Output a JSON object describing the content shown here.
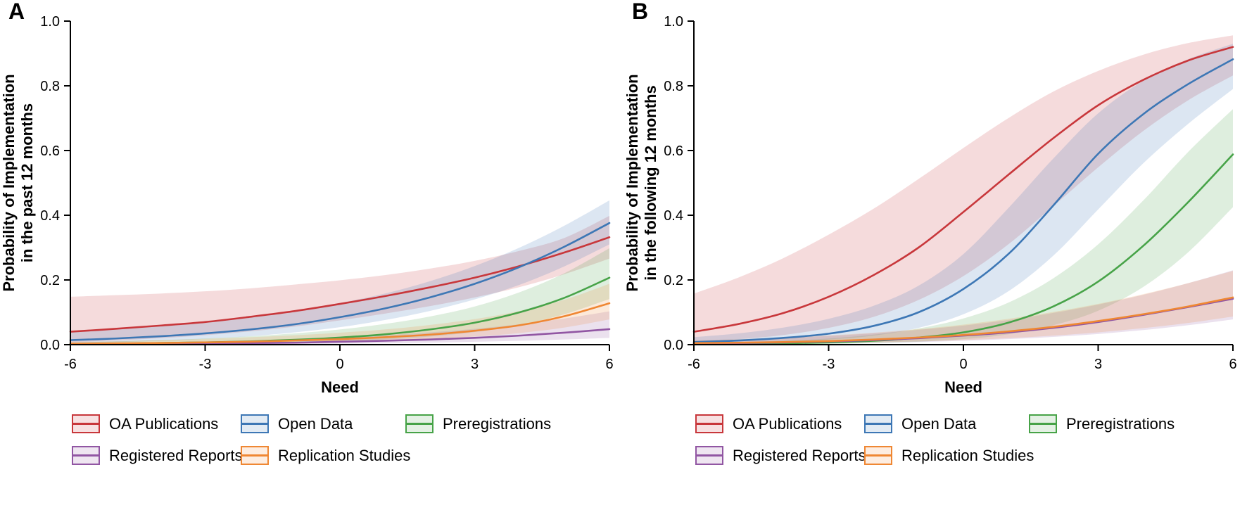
{
  "chart_data": [
    {
      "type": "line",
      "panel_label": "A",
      "xlabel": "Need",
      "ylabel_lines": [
        "Probability of Implementation",
        "in the past 12 months"
      ],
      "xlim": [
        -6,
        6
      ],
      "ylim": [
        0,
        1
      ],
      "xticks": [
        -6,
        -3,
        0,
        3,
        6
      ],
      "yticks": [
        0,
        0.2,
        0.4,
        0.6,
        0.8,
        1
      ],
      "grid": false,
      "legend_position": "bottom",
      "x": [
        -6,
        -5,
        -4,
        -3,
        -2,
        -1,
        0,
        1,
        2,
        3,
        4,
        5,
        6
      ],
      "series": [
        {
          "name": "OA Publications",
          "color": "#C8373B",
          "values": [
            0.04,
            0.049,
            0.059,
            0.07,
            0.086,
            0.104,
            0.126,
            0.15,
            0.177,
            0.207,
            0.243,
            0.285,
            0.332
          ],
          "lower": [
            0.008,
            0.013,
            0.02,
            0.029,
            0.041,
            0.056,
            0.075,
            0.096,
            0.119,
            0.146,
            0.178,
            0.218,
            0.266
          ],
          "upper": [
            0.148,
            0.153,
            0.158,
            0.165,
            0.174,
            0.186,
            0.199,
            0.215,
            0.235,
            0.259,
            0.29,
            0.33,
            0.398
          ]
        },
        {
          "name": "Open Data",
          "color": "#3D77B5",
          "values": [
            0.014,
            0.019,
            0.026,
            0.035,
            0.047,
            0.063,
            0.085,
            0.112,
            0.146,
            0.188,
            0.24,
            0.303,
            0.376
          ],
          "lower": [
            0.005,
            0.008,
            0.012,
            0.018,
            0.026,
            0.038,
            0.054,
            0.076,
            0.104,
            0.14,
            0.185,
            0.242,
            0.31
          ],
          "upper": [
            0.038,
            0.047,
            0.057,
            0.07,
            0.086,
            0.105,
            0.129,
            0.158,
            0.196,
            0.243,
            0.3,
            0.368,
            0.446
          ]
        },
        {
          "name": "Preregistrations",
          "color": "#47A348",
          "values": [
            0.002,
            0.003,
            0.005,
            0.007,
            0.01,
            0.015,
            0.022,
            0.032,
            0.047,
            0.068,
            0.1,
            0.145,
            0.207
          ],
          "lower": [
            0.0,
            0.001,
            0.001,
            0.002,
            0.004,
            0.006,
            0.01,
            0.016,
            0.025,
            0.039,
            0.061,
            0.094,
            0.141
          ],
          "upper": [
            0.007,
            0.01,
            0.014,
            0.019,
            0.026,
            0.035,
            0.047,
            0.064,
            0.087,
            0.118,
            0.162,
            0.221,
            0.298
          ]
        },
        {
          "name": "Registered Reports",
          "color": "#9156A3",
          "values": [
            0.001,
            0.002,
            0.002,
            0.003,
            0.005,
            0.006,
            0.009,
            0.012,
            0.016,
            0.021,
            0.028,
            0.037,
            0.048
          ],
          "lower": [
            0.0,
            0.0,
            0.0,
            0.001,
            0.001,
            0.002,
            0.003,
            0.004,
            0.006,
            0.009,
            0.012,
            0.016,
            0.021
          ],
          "upper": [
            0.005,
            0.006,
            0.008,
            0.01,
            0.013,
            0.017,
            0.022,
            0.029,
            0.038,
            0.049,
            0.063,
            0.081,
            0.103
          ]
        },
        {
          "name": "Replication Studies",
          "color": "#EF8733",
          "values": [
            0.003,
            0.004,
            0.005,
            0.007,
            0.009,
            0.013,
            0.017,
            0.023,
            0.031,
            0.043,
            0.06,
            0.088,
            0.128
          ],
          "lower": [
            0.001,
            0.001,
            0.002,
            0.003,
            0.004,
            0.006,
            0.008,
            0.012,
            0.017,
            0.025,
            0.036,
            0.053,
            0.078
          ],
          "upper": [
            0.009,
            0.011,
            0.014,
            0.018,
            0.023,
            0.029,
            0.037,
            0.047,
            0.061,
            0.079,
            0.104,
            0.139,
            0.188
          ]
        }
      ]
    },
    {
      "type": "line",
      "panel_label": "B",
      "xlabel": "Need",
      "ylabel_lines": [
        "Probability of Implementation",
        "in the following 12 months"
      ],
      "xlim": [
        -6,
        6
      ],
      "ylim": [
        0,
        1
      ],
      "xticks": [
        -6,
        -3,
        0,
        3,
        6
      ],
      "yticks": [
        0,
        0.2,
        0.4,
        0.6,
        0.8,
        1
      ],
      "grid": false,
      "legend_position": "bottom",
      "x": [
        -6,
        -5,
        -4,
        -3,
        -2,
        -1,
        0,
        1,
        2,
        3,
        4,
        5,
        6
      ],
      "series": [
        {
          "name": "OA Publications",
          "color": "#C8373B",
          "values": [
            0.04,
            0.064,
            0.098,
            0.148,
            0.215,
            0.3,
            0.41,
            0.525,
            0.638,
            0.74,
            0.818,
            0.878,
            0.92
          ],
          "lower": [
            0.009,
            0.017,
            0.03,
            0.052,
            0.086,
            0.138,
            0.212,
            0.31,
            0.428,
            0.548,
            0.66,
            0.755,
            0.832
          ],
          "upper": [
            0.158,
            0.208,
            0.268,
            0.34,
            0.42,
            0.512,
            0.608,
            0.7,
            0.782,
            0.846,
            0.896,
            0.932,
            0.956
          ]
        },
        {
          "name": "Open Data",
          "color": "#3D77B5",
          "values": [
            0.008,
            0.013,
            0.021,
            0.034,
            0.058,
            0.1,
            0.172,
            0.28,
            0.43,
            0.59,
            0.712,
            0.805,
            0.882
          ],
          "lower": [
            0.003,
            0.005,
            0.009,
            0.016,
            0.028,
            0.052,
            0.094,
            0.165,
            0.275,
            0.418,
            0.56,
            0.682,
            0.79
          ],
          "upper": [
            0.023,
            0.035,
            0.053,
            0.08,
            0.12,
            0.182,
            0.28,
            0.422,
            0.575,
            0.715,
            0.815,
            0.882,
            0.93
          ]
        },
        {
          "name": "Preregistrations",
          "color": "#47A348",
          "values": [
            0.001,
            0.002,
            0.004,
            0.007,
            0.012,
            0.022,
            0.038,
            0.068,
            0.118,
            0.195,
            0.305,
            0.44,
            0.588
          ],
          "lower": [
            0.0,
            0.001,
            0.001,
            0.002,
            0.005,
            0.009,
            0.017,
            0.032,
            0.06,
            0.105,
            0.178,
            0.285,
            0.425
          ],
          "upper": [
            0.005,
            0.008,
            0.012,
            0.019,
            0.031,
            0.05,
            0.081,
            0.13,
            0.205,
            0.31,
            0.445,
            0.595,
            0.728
          ]
        },
        {
          "name": "Registered Reports",
          "color": "#9156A3",
          "values": [
            0.004,
            0.005,
            0.007,
            0.01,
            0.014,
            0.02,
            0.028,
            0.038,
            0.052,
            0.07,
            0.092,
            0.116,
            0.142
          ],
          "lower": [
            0.001,
            0.002,
            0.003,
            0.004,
            0.006,
            0.008,
            0.012,
            0.017,
            0.024,
            0.033,
            0.045,
            0.06,
            0.078
          ],
          "upper": [
            0.012,
            0.016,
            0.021,
            0.027,
            0.035,
            0.046,
            0.059,
            0.076,
            0.098,
            0.124,
            0.154,
            0.19,
            0.23
          ]
        },
        {
          "name": "Replication Studies",
          "color": "#EF8733",
          "values": [
            0.005,
            0.006,
            0.008,
            0.011,
            0.016,
            0.022,
            0.03,
            0.041,
            0.055,
            0.073,
            0.094,
            0.118,
            0.146
          ],
          "lower": [
            0.002,
            0.002,
            0.003,
            0.005,
            0.007,
            0.01,
            0.014,
            0.02,
            0.028,
            0.038,
            0.051,
            0.067,
            0.087
          ],
          "upper": [
            0.013,
            0.017,
            0.022,
            0.029,
            0.037,
            0.048,
            0.062,
            0.08,
            0.101,
            0.126,
            0.156,
            0.19,
            0.228
          ]
        }
      ]
    }
  ]
}
